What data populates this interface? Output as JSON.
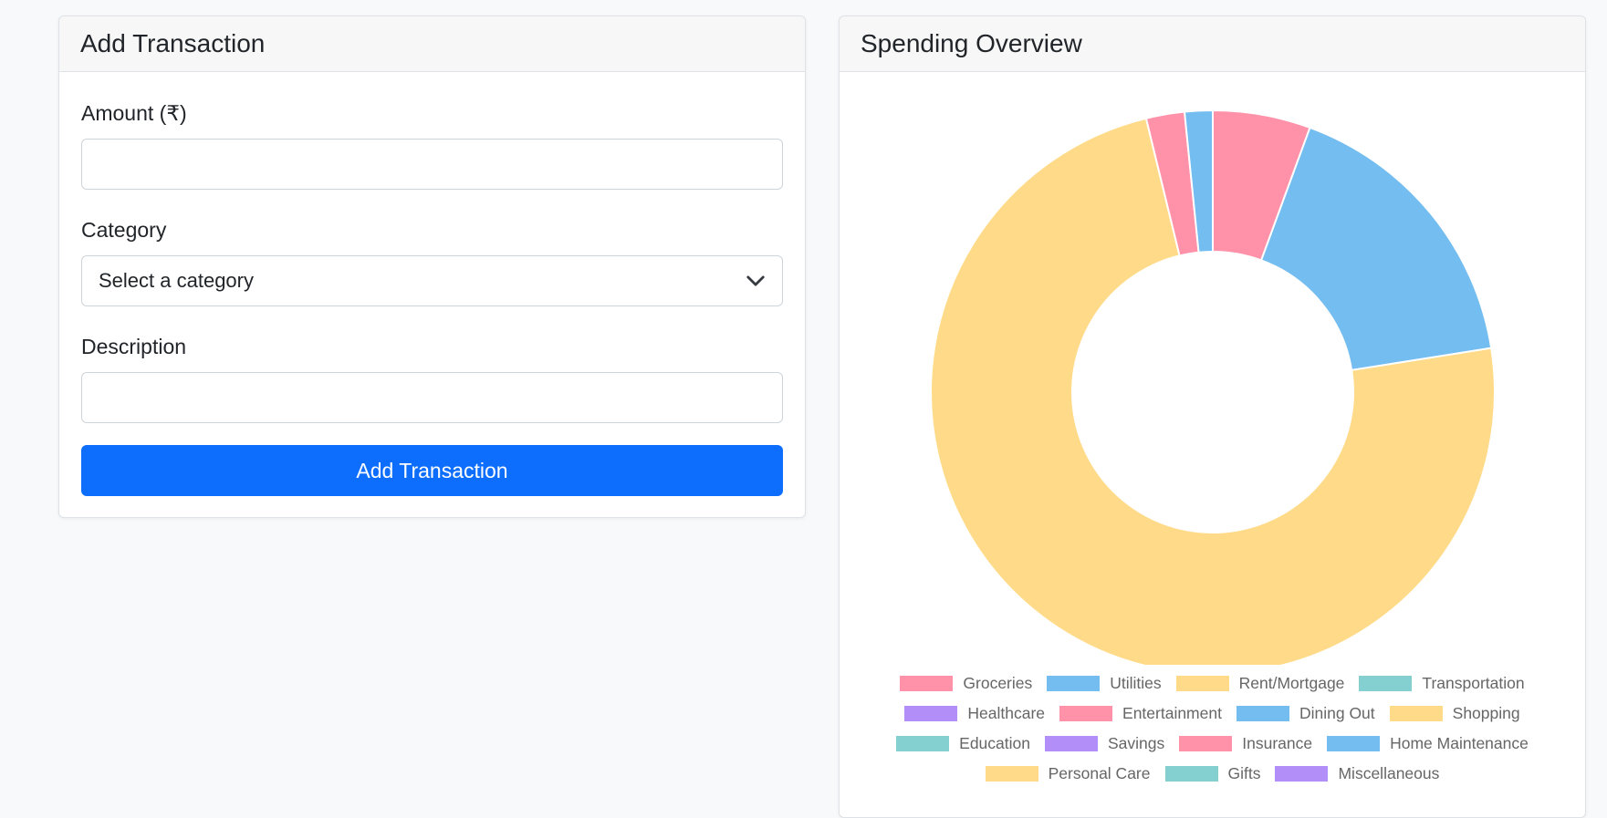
{
  "form": {
    "title": "Add Transaction",
    "amount_label": "Amount (₹)",
    "amount_value": "",
    "category_label": "Category",
    "category_selected": "Select a category",
    "description_label": "Description",
    "description_value": "",
    "submit_label": "Add Transaction"
  },
  "overview": {
    "title": "Spending Overview"
  },
  "chart_data": {
    "type": "doughnut",
    "categories": [
      "Groceries",
      "Utilities",
      "Rent/Mortgage",
      "Transportation",
      "Healthcare",
      "Entertainment",
      "Dining Out",
      "Shopping",
      "Education",
      "Savings",
      "Insurance",
      "Home Maintenance",
      "Personal Care",
      "Gifts",
      "Miscellaneous"
    ],
    "values": [
      5.6,
      16.9,
      73.7,
      0,
      0,
      2.2,
      1.6,
      0,
      0,
      0,
      0,
      0,
      0,
      0,
      0
    ],
    "colors": [
      "#ff91a9",
      "#73bdf0",
      "#ffdb89",
      "#84d0d0",
      "#b28ef9",
      "#ff91a9",
      "#73bdf0",
      "#ffdb89",
      "#84d0d0",
      "#b28ef9",
      "#ff91a9",
      "#73bdf0",
      "#ffdb89",
      "#84d0d0",
      "#b28ef9"
    ],
    "legend_position": "bottom",
    "legend_rows": [
      [
        "Groceries",
        "Utilities",
        "Rent/Mortgage",
        "Transportation"
      ],
      [
        "Healthcare",
        "Entertainment",
        "Dining Out",
        "Shopping"
      ],
      [
        "Education",
        "Savings",
        "Insurance",
        "Home Maintenance"
      ],
      [
        "Personal Care",
        "Gifts",
        "Miscellaneous"
      ]
    ]
  }
}
